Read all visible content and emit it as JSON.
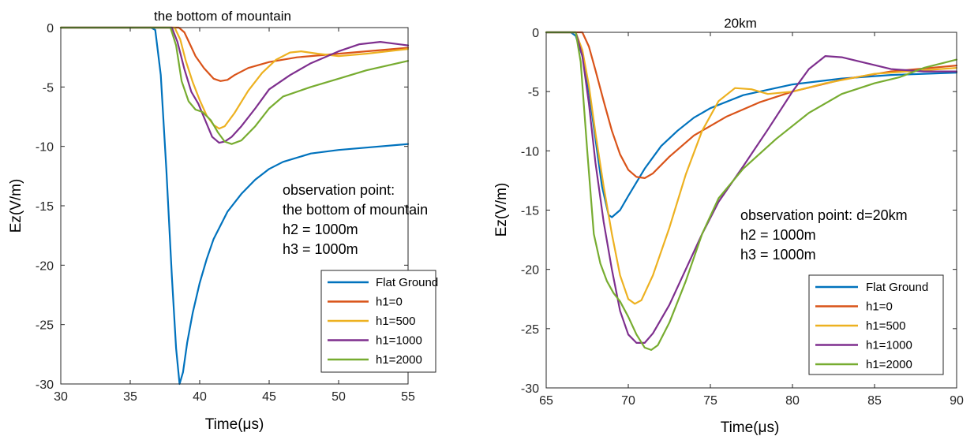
{
  "colors": {
    "flat": "#0072BD",
    "h0": "#D95319",
    "h500": "#EDB120",
    "h1000": "#7E2F8E",
    "h2000": "#77AC30"
  },
  "chart_data": [
    {
      "type": "line",
      "title": "the bottom of mountain",
      "xlabel": "Time(μs)",
      "ylabel": "Ez(V/m)",
      "xlim": [
        30,
        55
      ],
      "ylim": [
        -30,
        0
      ],
      "xticks": [
        30,
        35,
        40,
        45,
        50,
        55
      ],
      "yticks": [
        0,
        -5,
        -10,
        -15,
        -20,
        -25,
        -30
      ],
      "grid": false,
      "legend_position": "bottom-right",
      "annotation": [
        "observation point:",
        "the bottom of mountain",
        "h2 = 1000m",
        "h3 = 1000m"
      ],
      "series": [
        {
          "name": "Flat Ground",
          "color_key": "flat",
          "x": [
            30,
            36.5,
            36.8,
            37.2,
            37.6,
            38.0,
            38.3,
            38.55,
            38.8,
            39.1,
            39.5,
            40,
            40.5,
            41,
            42,
            43,
            44,
            45,
            46,
            48,
            50,
            52,
            55
          ],
          "y": [
            0,
            0,
            -0.2,
            -4,
            -12,
            -21,
            -27,
            -30,
            -29,
            -26.5,
            -24,
            -21.5,
            -19.5,
            -17.8,
            -15.5,
            -14,
            -12.8,
            -11.9,
            -11.3,
            -10.6,
            -10.3,
            -10.1,
            -9.8
          ]
        },
        {
          "name": "h1=0",
          "color_key": "h0",
          "x": [
            30,
            38.5,
            38.9,
            39.3,
            39.7,
            40.3,
            41,
            41.5,
            42,
            42.5,
            43.5,
            45,
            47,
            50,
            55
          ],
          "y": [
            0,
            0,
            -0.4,
            -1.4,
            -2.4,
            -3.4,
            -4.3,
            -4.5,
            -4.4,
            -4.0,
            -3.4,
            -2.9,
            -2.5,
            -2.2,
            -1.7
          ]
        },
        {
          "name": "h1=500",
          "color_key": "h500",
          "x": [
            30,
            38.2,
            38.6,
            39.0,
            39.5,
            40.0,
            40.5,
            41.0,
            41.4,
            41.8,
            42.5,
            43.5,
            44.5,
            45.5,
            46.5,
            47.3,
            48.5,
            50,
            52,
            55
          ],
          "y": [
            0,
            0,
            -1,
            -2.8,
            -4.6,
            -6.1,
            -7.4,
            -8.2,
            -8.5,
            -8.3,
            -7.2,
            -5.3,
            -3.8,
            -2.7,
            -2.1,
            -2.0,
            -2.2,
            -2.4,
            -2.2,
            -1.8
          ]
        },
        {
          "name": "h1=1000",
          "color_key": "h1000",
          "x": [
            30,
            38.0,
            38.4,
            38.9,
            39.4,
            39.9,
            40.4,
            40.9,
            41.4,
            41.8,
            42.3,
            43,
            44,
            45,
            46.5,
            48,
            50,
            51.5,
            53,
            55
          ],
          "y": [
            0,
            0,
            -1.2,
            -3.5,
            -5.4,
            -6.4,
            -7.8,
            -9.2,
            -9.7,
            -9.6,
            -9.2,
            -8.3,
            -6.8,
            -5.2,
            -4.0,
            -3.0,
            -2.0,
            -1.4,
            -1.2,
            -1.5
          ]
        },
        {
          "name": "h1=2000",
          "color_key": "h2000",
          "x": [
            30,
            37.9,
            38.3,
            38.7,
            39.2,
            39.7,
            40.2,
            40.8,
            41.3,
            41.8,
            42.3,
            43,
            44,
            45,
            46,
            48,
            50,
            52,
            55
          ],
          "y": [
            0,
            0,
            -1.5,
            -4.5,
            -6.2,
            -6.9,
            -7.1,
            -7.8,
            -8.8,
            -9.6,
            -9.8,
            -9.5,
            -8.3,
            -6.8,
            -5.8,
            -5.0,
            -4.3,
            -3.6,
            -2.8
          ]
        }
      ]
    },
    {
      "type": "line",
      "title": "20km",
      "xlabel": "Time(μs)",
      "ylabel": "Ez(V/m)",
      "xlim": [
        65,
        90
      ],
      "ylim": [
        -30,
        0
      ],
      "xticks": [
        65,
        70,
        75,
        80,
        85,
        90
      ],
      "yticks": [
        0,
        -5,
        -10,
        -15,
        -20,
        -25,
        -30
      ],
      "grid": false,
      "legend_position": "bottom-right",
      "annotation": [
        "observation point: d=20km",
        "h2 = 1000m",
        "h3 = 1000m"
      ],
      "series": [
        {
          "name": "Flat Ground",
          "color_key": "flat",
          "x": [
            65,
            66.5,
            66.8,
            67.2,
            67.6,
            68.0,
            68.4,
            68.8,
            69.0,
            69.5,
            70,
            71,
            72,
            73,
            74,
            75,
            77,
            80,
            83,
            86,
            90
          ],
          "y": [
            0,
            0,
            -0.3,
            -2,
            -5,
            -9,
            -13,
            -15.4,
            -15.6,
            -15.0,
            -13.8,
            -11.5,
            -9.6,
            -8.3,
            -7.2,
            -6.4,
            -5.3,
            -4.4,
            -3.9,
            -3.6,
            -3.4
          ]
        },
        {
          "name": "h1=0",
          "color_key": "h0",
          "x": [
            65,
            67.2,
            67.6,
            68.0,
            68.5,
            69.0,
            69.5,
            70.0,
            70.5,
            71.0,
            71.5,
            72.5,
            74,
            76,
            78,
            80,
            83,
            86,
            90
          ],
          "y": [
            0,
            0,
            -1.2,
            -3.2,
            -5.8,
            -8.3,
            -10.3,
            -11.6,
            -12.2,
            -12.3,
            -11.9,
            -10.5,
            -8.7,
            -7.1,
            -5.9,
            -5.0,
            -4.0,
            -3.3,
            -2.8
          ]
        },
        {
          "name": "h1=500",
          "color_key": "h500",
          "x": [
            65,
            66.8,
            67.2,
            67.6,
            68.0,
            68.5,
            69.0,
            69.5,
            70.0,
            70.4,
            70.8,
            71.5,
            72.5,
            73.5,
            74.5,
            75.5,
            76.5,
            77.5,
            78.5,
            80,
            82,
            85,
            90
          ],
          "y": [
            0,
            0,
            -1.5,
            -4.5,
            -8.5,
            -13,
            -17,
            -20.5,
            -22.5,
            -22.9,
            -22.6,
            -20.5,
            -16.5,
            -12,
            -8.3,
            -5.8,
            -4.7,
            -4.8,
            -5.2,
            -5.0,
            -4.3,
            -3.5,
            -3.0
          ]
        },
        {
          "name": "h1=1000",
          "color_key": "h1000",
          "x": [
            65,
            66.8,
            67.2,
            67.6,
            68.0,
            68.5,
            69.0,
            69.5,
            70.0,
            70.5,
            71.0,
            71.5,
            72.5,
            73.5,
            74.5,
            75.5,
            77,
            78.5,
            80,
            81,
            82,
            83,
            84.5,
            86,
            88,
            90
          ],
          "y": [
            0,
            0,
            -2,
            -6,
            -11,
            -16,
            -20,
            -23.5,
            -25.5,
            -26.2,
            -26.2,
            -25.4,
            -23,
            -20,
            -17,
            -14.3,
            -11.3,
            -8.2,
            -5.0,
            -3.1,
            -2.0,
            -2.1,
            -2.6,
            -3.1,
            -3.3,
            -3.3
          ]
        },
        {
          "name": "h1=2000",
          "color_key": "h2000",
          "x": [
            65,
            66.8,
            67.1,
            67.5,
            67.9,
            68.3,
            68.7,
            69.1,
            69.5,
            70.0,
            70.5,
            71.0,
            71.4,
            71.8,
            72.5,
            73.5,
            74.5,
            75.5,
            77,
            79,
            81,
            83,
            85,
            86.5,
            88,
            90
          ],
          "y": [
            0,
            0,
            -2.5,
            -10,
            -17,
            -19.5,
            -21,
            -22,
            -22.7,
            -24,
            -25.5,
            -26.6,
            -26.8,
            -26.4,
            -24.5,
            -21,
            -17,
            -14,
            -11.5,
            -9,
            -6.8,
            -5.2,
            -4.3,
            -3.8,
            -3.0,
            -2.3
          ]
        }
      ]
    }
  ]
}
